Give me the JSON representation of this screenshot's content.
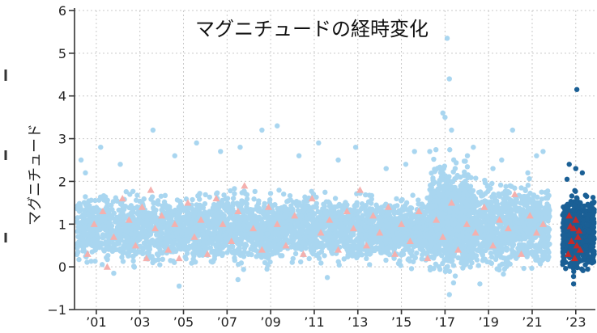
{
  "chart_data": {
    "type": "scatter",
    "title": "マグニチュードの経時変化",
    "xlabel": "",
    "ylabel": "マグニチュード",
    "ylim": [
      -1,
      6
    ],
    "xlim": [
      2000.0,
      2023.9
    ],
    "y_ticks": [
      6,
      5,
      4,
      3,
      2,
      1,
      0,
      -1
    ],
    "x_ticks": [
      {
        "label": "’01",
        "value": 2001
      },
      {
        "label": "’03",
        "value": 2003
      },
      {
        "label": "’05",
        "value": 2005
      },
      {
        "label": "’07",
        "value": 2007
      },
      {
        "label": "’09",
        "value": 2009
      },
      {
        "label": "’11",
        "value": 2011
      },
      {
        "label": "’13",
        "value": 2013
      },
      {
        "label": "’15",
        "value": 2015
      },
      {
        "label": "’17",
        "value": 2017
      },
      {
        "label": "’19",
        "value": 2019
      },
      {
        "label": "’21",
        "value": 2021
      },
      {
        "label": "’23",
        "value": 2023
      }
    ],
    "grid": true,
    "series": [
      {
        "color": "#a9d6f0",
        "marker": "circle",
        "points": [
          [
            2000.3,
            2.5
          ],
          [
            2000.5,
            2.2
          ],
          [
            2001.2,
            2.8
          ],
          [
            2002.1,
            2.4
          ],
          [
            2003.6,
            3.2
          ],
          [
            2004.6,
            2.6
          ],
          [
            2005.6,
            2.9
          ],
          [
            2006.7,
            2.7
          ],
          [
            2007.6,
            2.8
          ],
          [
            2008.6,
            3.2
          ],
          [
            2009.3,
            3.3
          ],
          [
            2010.3,
            2.6
          ],
          [
            2011.2,
            2.9
          ],
          [
            2012.1,
            2.5
          ],
          [
            2012.9,
            2.8
          ],
          [
            2014.3,
            2.3
          ],
          [
            2015.2,
            2.4
          ],
          [
            2015.6,
            2.7
          ],
          [
            2016.3,
            2.7
          ],
          [
            2016.9,
            3.6
          ],
          [
            2017.1,
            5.35
          ],
          [
            2017.2,
            4.4
          ],
          [
            2017.0,
            3.5
          ],
          [
            2017.3,
            3.2
          ],
          [
            2018.3,
            2.8
          ],
          [
            2019.2,
            2.3
          ],
          [
            2019.6,
            2.5
          ],
          [
            2020.1,
            3.2
          ],
          [
            2020.8,
            2.2
          ],
          [
            2021.2,
            2.6
          ],
          [
            2021.5,
            2.7
          ],
          [
            2017.2,
            -0.65
          ],
          [
            2004.8,
            -0.45
          ],
          [
            2007.5,
            -0.3
          ],
          [
            2011.6,
            -0.25
          ],
          [
            2018.6,
            -0.4
          ],
          [
            2001.8,
            -0.15
          ]
        ],
        "clouds": [
          {
            "x": [
              2000.1,
              2005.0
            ],
            "y": [
              -0.15,
              1.9
            ],
            "n": 900
          },
          {
            "x": [
              2005.0,
              2009.5
            ],
            "y": [
              -0.2,
              2.0
            ],
            "n": 900
          },
          {
            "x": [
              2009.5,
              2013.5
            ],
            "y": [
              -0.1,
              1.9
            ],
            "n": 800
          },
          {
            "x": [
              2013.5,
              2016.3
            ],
            "y": [
              -0.1,
              1.8
            ],
            "n": 650
          },
          {
            "x": [
              2016.3,
              2018.2
            ],
            "y": [
              -0.5,
              2.8
            ],
            "n": 900
          },
          {
            "x": [
              2018.2,
              2021.8
            ],
            "y": [
              -0.3,
              2.2
            ],
            "n": 900
          }
        ]
      },
      {
        "color": "#f4b0ae",
        "marker": "triangle",
        "points": [
          [
            2000.6,
            0.3
          ],
          [
            2000.9,
            1.0
          ],
          [
            2001.3,
            1.3
          ],
          [
            2001.5,
            0.0
          ],
          [
            2001.8,
            0.7
          ],
          [
            2002.2,
            1.6
          ],
          [
            2002.5,
            1.1
          ],
          [
            2002.8,
            0.5
          ],
          [
            2003.1,
            1.4
          ],
          [
            2003.3,
            0.2
          ],
          [
            2003.5,
            1.8
          ],
          [
            2003.7,
            0.9
          ],
          [
            2004.0,
            1.2
          ],
          [
            2004.3,
            0.4
          ],
          [
            2004.6,
            1.0
          ],
          [
            2004.8,
            0.2
          ],
          [
            2005.2,
            1.5
          ],
          [
            2005.5,
            0.7
          ],
          [
            2005.8,
            1.1
          ],
          [
            2006.1,
            0.3
          ],
          [
            2006.5,
            1.6
          ],
          [
            2006.8,
            1.0
          ],
          [
            2007.2,
            0.6
          ],
          [
            2007.5,
            1.3
          ],
          [
            2007.8,
            1.9
          ],
          [
            2008.2,
            0.9
          ],
          [
            2008.6,
            0.4
          ],
          [
            2008.9,
            1.4
          ],
          [
            2009.3,
            1.0
          ],
          [
            2009.7,
            0.5
          ],
          [
            2010.1,
            1.2
          ],
          [
            2010.5,
            0.3
          ],
          [
            2010.9,
            1.6
          ],
          [
            2011.3,
            0.8
          ],
          [
            2011.7,
            1.1
          ],
          [
            2012.1,
            0.4
          ],
          [
            2012.5,
            1.3
          ],
          [
            2012.8,
            0.9
          ],
          [
            2013.1,
            1.8
          ],
          [
            2013.4,
            0.5
          ],
          [
            2013.7,
            1.2
          ],
          [
            2014.0,
            0.8
          ],
          [
            2014.4,
            1.4
          ],
          [
            2014.7,
            0.3
          ],
          [
            2015.0,
            1.0
          ],
          [
            2015.4,
            0.6
          ],
          [
            2015.8,
            1.3
          ],
          [
            2016.2,
            0.2
          ],
          [
            2016.6,
            1.1
          ],
          [
            2016.9,
            0.7
          ],
          [
            2017.3,
            1.5
          ],
          [
            2017.6,
            0.4
          ],
          [
            2018.0,
            1.0
          ],
          [
            2018.4,
            0.8
          ],
          [
            2018.8,
            1.4
          ],
          [
            2019.2,
            0.5
          ],
          [
            2019.5,
            1.1
          ],
          [
            2019.9,
            0.9
          ],
          [
            2020.2,
            1.7
          ],
          [
            2020.5,
            0.3
          ],
          [
            2020.9,
            1.2
          ],
          [
            2021.2,
            0.8
          ],
          [
            2021.5,
            1.0
          ]
        ]
      },
      {
        "color": "#1a5f95",
        "marker": "circle",
        "points": [
          [
            2023.05,
            4.15
          ],
          [
            2022.7,
            2.4
          ],
          [
            2023.0,
            2.3
          ],
          [
            2022.6,
            2.05
          ],
          [
            2023.3,
            2.2
          ],
          [
            2022.9,
            -0.4
          ]
        ],
        "clouds": [
          {
            "x": [
              2022.4,
              2023.85
            ],
            "y": [
              -0.3,
              1.9
            ],
            "n": 700
          }
        ]
      },
      {
        "color": "#c22a2a",
        "marker": "triangle",
        "points": [
          [
            2022.7,
            1.2
          ],
          [
            2022.9,
            0.9
          ],
          [
            2023.0,
            1.1
          ],
          [
            2022.8,
            0.6
          ],
          [
            2023.1,
            0.7
          ],
          [
            2022.65,
            0.3
          ],
          [
            2023.2,
            0.4
          ],
          [
            2022.95,
            0.2
          ],
          [
            2023.05,
            0.5
          ],
          [
            2022.75,
            0.95
          ],
          [
            2023.15,
            0.85
          ]
        ]
      }
    ]
  }
}
